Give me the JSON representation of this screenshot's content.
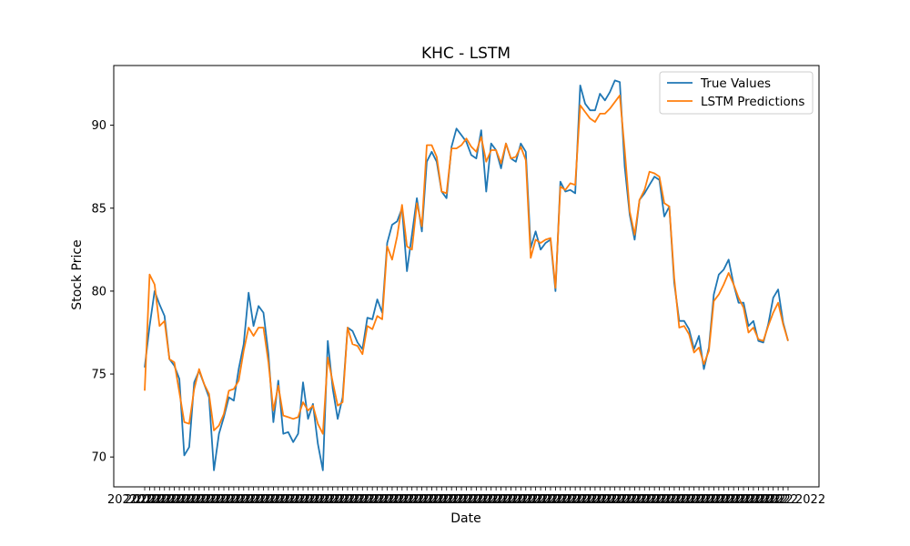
{
  "chart_data": {
    "type": "line",
    "title": "KHC - LSTM",
    "xlabel": "Date",
    "ylabel": "Stock Price",
    "ylim": [
      68.2,
      93.6
    ],
    "yticks": [
      70,
      75,
      80,
      85,
      90
    ],
    "grid": false,
    "legend_position": "top-right",
    "x_tick_labels_note_visible": [
      "2022",
      "2022"
    ],
    "series": [
      {
        "name": "True Values",
        "color": "#1f77b4",
        "values": [
          75.4,
          77.9,
          80.0,
          79.2,
          78.5,
          75.9,
          75.5,
          74.7,
          70.1,
          70.6,
          74.5,
          75.2,
          74.4,
          73.6,
          69.2,
          71.4,
          72.4,
          73.6,
          73.4,
          75.3,
          76.8,
          79.9,
          77.9,
          79.1,
          78.7,
          76.2,
          72.1,
          74.6,
          71.4,
          71.5,
          70.9,
          71.4,
          74.5,
          72.3,
          73.2,
          70.8,
          69.2,
          77.0,
          74.1,
          72.3,
          73.6,
          77.8,
          77.6,
          76.9,
          76.5,
          78.4,
          78.3,
          79.5,
          78.7,
          82.9,
          84.0,
          84.2,
          85.0,
          81.2,
          83.4,
          85.6,
          83.6,
          87.8,
          88.4,
          87.8,
          86.0,
          85.6,
          88.7,
          89.8,
          89.4,
          89.0,
          88.2,
          88.0,
          89.7,
          86.0,
          88.9,
          88.5,
          87.4,
          88.9,
          88.0,
          87.8,
          88.9,
          88.4,
          82.6,
          83.6,
          82.5,
          82.9,
          83.1,
          80.0,
          86.6,
          86.0,
          86.1,
          85.9,
          92.4,
          91.3,
          90.9,
          90.9,
          91.9,
          91.5,
          92.0,
          92.7,
          92.6,
          87.5,
          84.6,
          83.1,
          85.5,
          85.9,
          86.4,
          86.9,
          86.7,
          84.5,
          85.1,
          80.5,
          78.2,
          78.2,
          77.7,
          76.5,
          77.3,
          75.3,
          76.6,
          79.8,
          81.0,
          81.3,
          81.9,
          80.4,
          79.3,
          79.3,
          77.9,
          78.2,
          77.0,
          76.9,
          78.0,
          79.6,
          80.1,
          78.1,
          77.0
        ]
      },
      {
        "name": "LSTM Predictions",
        "color": "#ff7f0e",
        "values": [
          74.0,
          81.0,
          80.4,
          77.9,
          78.2,
          75.9,
          75.7,
          73.9,
          72.1,
          72.0,
          74.1,
          75.3,
          74.4,
          73.8,
          71.6,
          71.9,
          72.6,
          74.0,
          74.1,
          74.6,
          76.4,
          77.8,
          77.3,
          77.8,
          77.8,
          75.7,
          72.8,
          74.3,
          72.5,
          72.4,
          72.3,
          72.4,
          73.3,
          72.8,
          73.1,
          72.0,
          71.4,
          76.0,
          74.5,
          73.1,
          73.3,
          77.8,
          76.8,
          76.7,
          76.2,
          77.9,
          77.7,
          78.5,
          78.3,
          82.7,
          81.9,
          83.3,
          85.2,
          82.7,
          82.5,
          85.3,
          83.9,
          88.8,
          88.8,
          88.1,
          86.0,
          85.9,
          88.6,
          88.6,
          88.8,
          89.2,
          88.7,
          88.4,
          89.3,
          87.8,
          88.5,
          88.5,
          87.7,
          88.9,
          88.0,
          88.1,
          88.7,
          87.9,
          82.0,
          83.1,
          82.9,
          83.1,
          83.2,
          80.2,
          86.3,
          86.1,
          86.5,
          86.4,
          91.2,
          90.8,
          90.4,
          90.2,
          90.7,
          90.7,
          91.0,
          91.4,
          91.8,
          88.5,
          84.8,
          83.4,
          85.5,
          86.1,
          87.2,
          87.1,
          86.9,
          85.3,
          85.1,
          80.8,
          77.8,
          77.9,
          77.4,
          76.3,
          76.6,
          75.6,
          76.4,
          79.4,
          79.8,
          80.4,
          81.1,
          80.4,
          79.6,
          79.0,
          77.5,
          77.8,
          77.1,
          77.0,
          77.9,
          78.7,
          79.3,
          78.0,
          77.0
        ]
      }
    ]
  }
}
